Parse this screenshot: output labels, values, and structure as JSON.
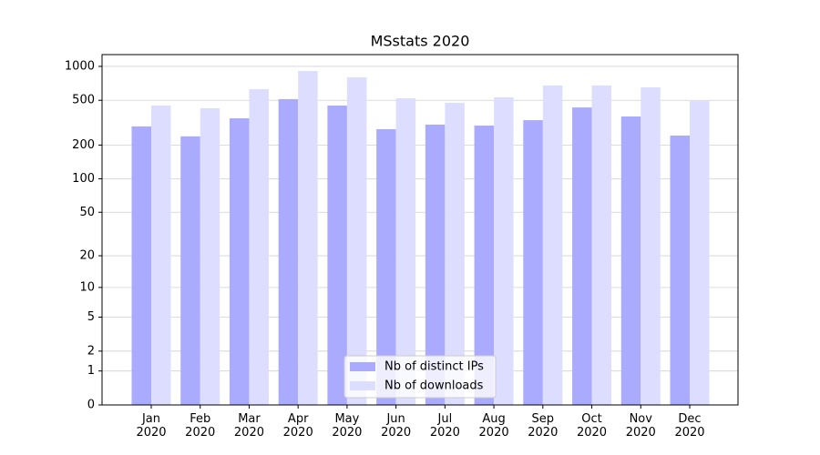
{
  "chart_data": {
    "type": "bar",
    "title": "MSstats 2020",
    "categories": [
      "Jan\n2020",
      "Feb\n2020",
      "Mar\n2020",
      "Apr\n2020",
      "May\n2020",
      "Jun\n2020",
      "Jul\n2020",
      "Aug\n2020",
      "Sep\n2020",
      "Oct\n2020",
      "Nov\n2020",
      "Dec\n2020"
    ],
    "series": [
      {
        "name": "Nb of distinct IPs",
        "color": "#aaaaff",
        "values": [
          293,
          239,
          346,
          512,
          449,
          277,
          304,
          298,
          333,
          432,
          359,
          243
        ]
      },
      {
        "name": "Nb of downloads",
        "color": "#ddddff",
        "values": [
          450,
          425,
          628,
          911,
          800,
          521,
          475,
          531,
          677,
          677,
          652,
          493
        ]
      }
    ],
    "yscale": "log1p",
    "ylim": [
      0,
      1272
    ],
    "yticks": [
      0,
      1,
      2,
      5,
      10,
      20,
      50,
      100,
      200,
      500,
      1000
    ],
    "grid": true,
    "legend": "lower center"
  }
}
